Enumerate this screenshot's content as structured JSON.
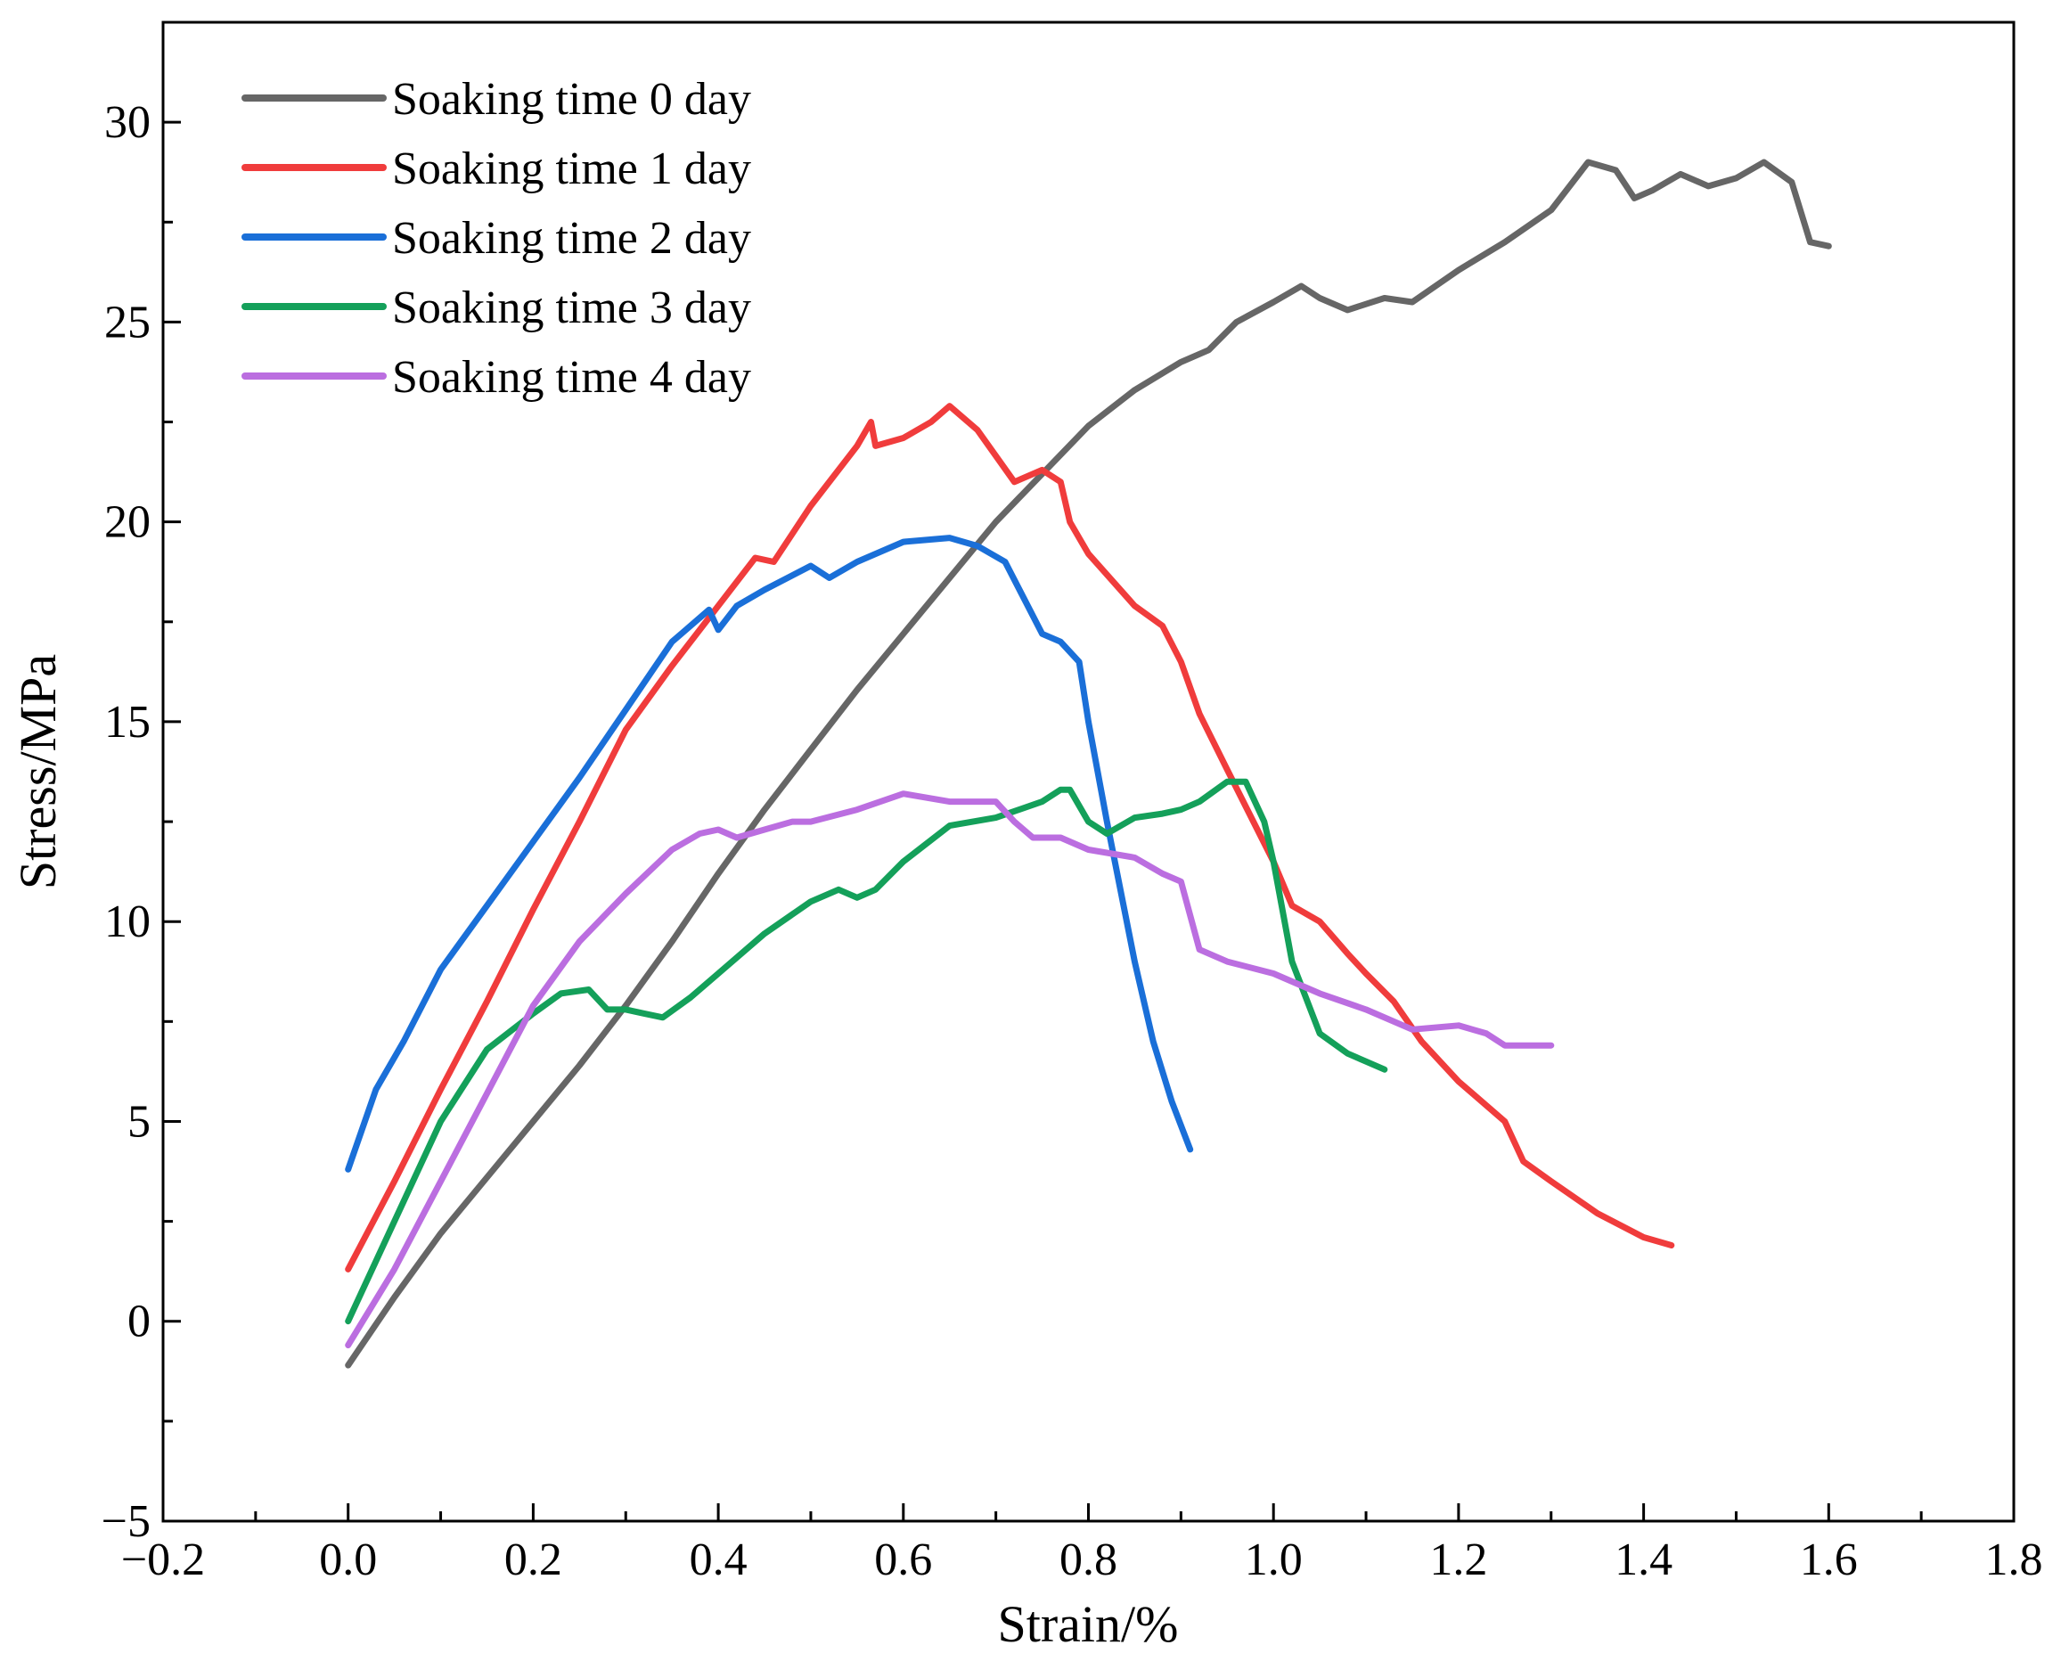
{
  "chart_data": {
    "type": "line",
    "title": "",
    "xlabel": "Strain/%",
    "ylabel": "Stress/MPa",
    "xlim": [
      -0.2,
      1.8
    ],
    "ylim": [
      -5,
      32.5
    ],
    "xticks": [
      -0.2,
      0.0,
      0.2,
      0.4,
      0.6,
      0.8,
      1.0,
      1.2,
      1.4,
      1.6,
      1.8
    ],
    "xtick_labels": [
      "−0.2",
      "0.0",
      "0.2",
      "0.4",
      "0.6",
      "0.8",
      "1.0",
      "1.2",
      "1.4",
      "1.6",
      "1.8"
    ],
    "yticks": [
      -5,
      0,
      5,
      10,
      15,
      20,
      25,
      30
    ],
    "ytick_labels": [
      "−5",
      "0",
      "5",
      "10",
      "15",
      "20",
      "25",
      "30"
    ],
    "grid": false,
    "legend_position": "top-left",
    "series": [
      {
        "name": "Soaking time 0 day",
        "color": "#666666",
        "x": [
          0.0,
          0.05,
          0.1,
          0.15,
          0.2,
          0.25,
          0.3,
          0.35,
          0.4,
          0.45,
          0.5,
          0.55,
          0.6,
          0.65,
          0.7,
          0.75,
          0.8,
          0.85,
          0.9,
          0.93,
          0.96,
          1.0,
          1.03,
          1.05,
          1.08,
          1.12,
          1.15,
          1.2,
          1.25,
          1.3,
          1.34,
          1.37,
          1.39,
          1.41,
          1.44,
          1.47,
          1.5,
          1.53,
          1.56,
          1.58,
          1.6
        ],
        "y": [
          -1.1,
          0.6,
          2.2,
          3.6,
          5.0,
          6.4,
          7.9,
          9.5,
          11.2,
          12.8,
          14.3,
          15.8,
          17.2,
          18.6,
          20.0,
          21.2,
          22.4,
          23.3,
          24.0,
          24.3,
          25.0,
          25.5,
          25.9,
          25.6,
          25.3,
          25.6,
          25.5,
          26.3,
          27.0,
          27.8,
          29.0,
          28.8,
          28.1,
          28.3,
          28.7,
          28.4,
          28.6,
          29.0,
          28.5,
          27.0,
          26.9
        ]
      },
      {
        "name": "Soaking time 1 day",
        "color": "#f03c3c",
        "x": [
          0.0,
          0.05,
          0.1,
          0.15,
          0.2,
          0.25,
          0.3,
          0.35,
          0.4,
          0.44,
          0.46,
          0.5,
          0.55,
          0.565,
          0.57,
          0.6,
          0.63,
          0.65,
          0.68,
          0.72,
          0.75,
          0.77,
          0.78,
          0.8,
          0.85,
          0.88,
          0.9,
          0.92,
          0.95,
          1.0,
          1.02,
          1.05,
          1.08,
          1.1,
          1.13,
          1.16,
          1.2,
          1.25,
          1.27,
          1.3,
          1.35,
          1.4,
          1.43
        ],
        "y": [
          1.3,
          3.5,
          5.8,
          8.0,
          10.3,
          12.5,
          14.8,
          16.4,
          17.9,
          19.1,
          19.0,
          20.4,
          21.9,
          22.5,
          21.9,
          22.1,
          22.5,
          22.9,
          22.3,
          21.0,
          21.3,
          21.0,
          20.0,
          19.2,
          17.9,
          17.4,
          16.5,
          15.2,
          13.8,
          11.5,
          10.4,
          10.0,
          9.2,
          8.7,
          8.0,
          7.0,
          6.0,
          5.0,
          4.0,
          3.5,
          2.7,
          2.1,
          1.9
        ]
      },
      {
        "name": "Soaking time 2 day",
        "color": "#1a6fd8",
        "x": [
          0.0,
          0.03,
          0.06,
          0.1,
          0.15,
          0.2,
          0.25,
          0.3,
          0.35,
          0.39,
          0.4,
          0.42,
          0.45,
          0.5,
          0.52,
          0.55,
          0.6,
          0.65,
          0.68,
          0.71,
          0.73,
          0.75,
          0.77,
          0.79,
          0.8,
          0.82,
          0.85,
          0.87,
          0.89,
          0.91
        ],
        "y": [
          3.8,
          5.8,
          7.0,
          8.8,
          10.4,
          12.0,
          13.6,
          15.3,
          17.0,
          17.8,
          17.3,
          17.9,
          18.3,
          18.9,
          18.6,
          19.0,
          19.5,
          19.6,
          19.4,
          19.0,
          18.1,
          17.2,
          17.0,
          16.5,
          15.0,
          12.5,
          9.0,
          7.0,
          5.5,
          4.3
        ]
      },
      {
        "name": "Soaking time 3 day",
        "color": "#14a05a",
        "x": [
          0.0,
          0.05,
          0.1,
          0.15,
          0.2,
          0.23,
          0.26,
          0.28,
          0.3,
          0.32,
          0.34,
          0.37,
          0.4,
          0.45,
          0.5,
          0.53,
          0.55,
          0.57,
          0.6,
          0.65,
          0.7,
          0.75,
          0.77,
          0.78,
          0.8,
          0.82,
          0.85,
          0.88,
          0.9,
          0.92,
          0.95,
          0.97,
          0.99,
          1.0,
          1.02,
          1.05,
          1.08,
          1.1,
          1.12
        ],
        "y": [
          0.0,
          2.5,
          5.0,
          6.8,
          7.7,
          8.2,
          8.3,
          7.8,
          7.8,
          7.7,
          7.6,
          8.1,
          8.7,
          9.7,
          10.5,
          10.8,
          10.6,
          10.8,
          11.5,
          12.4,
          12.6,
          13.0,
          13.3,
          13.3,
          12.5,
          12.2,
          12.6,
          12.7,
          12.8,
          13.0,
          13.5,
          13.5,
          12.5,
          11.5,
          9.0,
          7.2,
          6.7,
          6.5,
          6.3
        ]
      },
      {
        "name": "Soaking time 4 day",
        "color": "#bb6ee0",
        "x": [
          0.0,
          0.05,
          0.1,
          0.15,
          0.2,
          0.25,
          0.3,
          0.35,
          0.38,
          0.4,
          0.42,
          0.45,
          0.48,
          0.5,
          0.55,
          0.6,
          0.65,
          0.7,
          0.72,
          0.74,
          0.77,
          0.8,
          0.85,
          0.88,
          0.9,
          0.92,
          0.95,
          1.0,
          1.05,
          1.1,
          1.15,
          1.2,
          1.23,
          1.25,
          1.28,
          1.3
        ],
        "y": [
          -0.6,
          1.3,
          3.5,
          5.7,
          7.9,
          9.5,
          10.7,
          11.8,
          12.2,
          12.3,
          12.1,
          12.3,
          12.5,
          12.5,
          12.8,
          13.2,
          13.0,
          13.0,
          12.5,
          12.1,
          12.1,
          11.8,
          11.6,
          11.2,
          11.0,
          9.3,
          9.0,
          8.7,
          8.2,
          7.8,
          7.3,
          7.4,
          7.2,
          6.9,
          6.9,
          6.9
        ]
      }
    ]
  }
}
